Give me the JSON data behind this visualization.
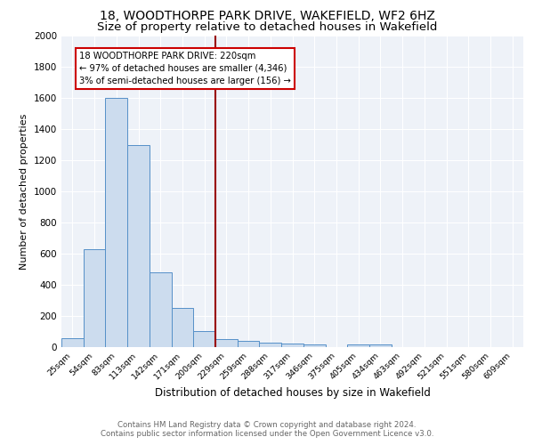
{
  "title": "18, WOODTHORPE PARK DRIVE, WAKEFIELD, WF2 6HZ",
  "subtitle": "Size of property relative to detached houses in Wakefield",
  "xlabel": "Distribution of detached houses by size in Wakefield",
  "ylabel": "Number of detached properties",
  "categories": [
    "25sqm",
    "54sqm",
    "83sqm",
    "113sqm",
    "142sqm",
    "171sqm",
    "200sqm",
    "229sqm",
    "259sqm",
    "288sqm",
    "317sqm",
    "346sqm",
    "375sqm",
    "405sqm",
    "434sqm",
    "463sqm",
    "492sqm",
    "521sqm",
    "551sqm",
    "580sqm",
    "609sqm"
  ],
  "values": [
    60,
    630,
    1600,
    1300,
    480,
    250,
    105,
    50,
    40,
    28,
    22,
    18,
    0,
    20,
    20,
    0,
    0,
    0,
    0,
    0,
    0
  ],
  "bar_color": "#ccdcee",
  "bar_edge_color": "#5590c8",
  "vline_color": "#990000",
  "annotation_text": "18 WOODTHORPE PARK DRIVE: 220sqm\n← 97% of detached houses are smaller (4,346)\n3% of semi-detached houses are larger (156) →",
  "annotation_box_color": "#ffffff",
  "annotation_box_edge_color": "#cc0000",
  "ylim": [
    0,
    2000
  ],
  "yticks": [
    0,
    200,
    400,
    600,
    800,
    1000,
    1200,
    1400,
    1600,
    1800,
    2000
  ],
  "bg_color": "#eef2f8",
  "footer_text": "Contains HM Land Registry data © Crown copyright and database right 2024.\nContains public sector information licensed under the Open Government Licence v3.0.",
  "title_fontsize": 10,
  "subtitle_fontsize": 9.5,
  "xlabel_fontsize": 8.5,
  "ylabel_fontsize": 8
}
